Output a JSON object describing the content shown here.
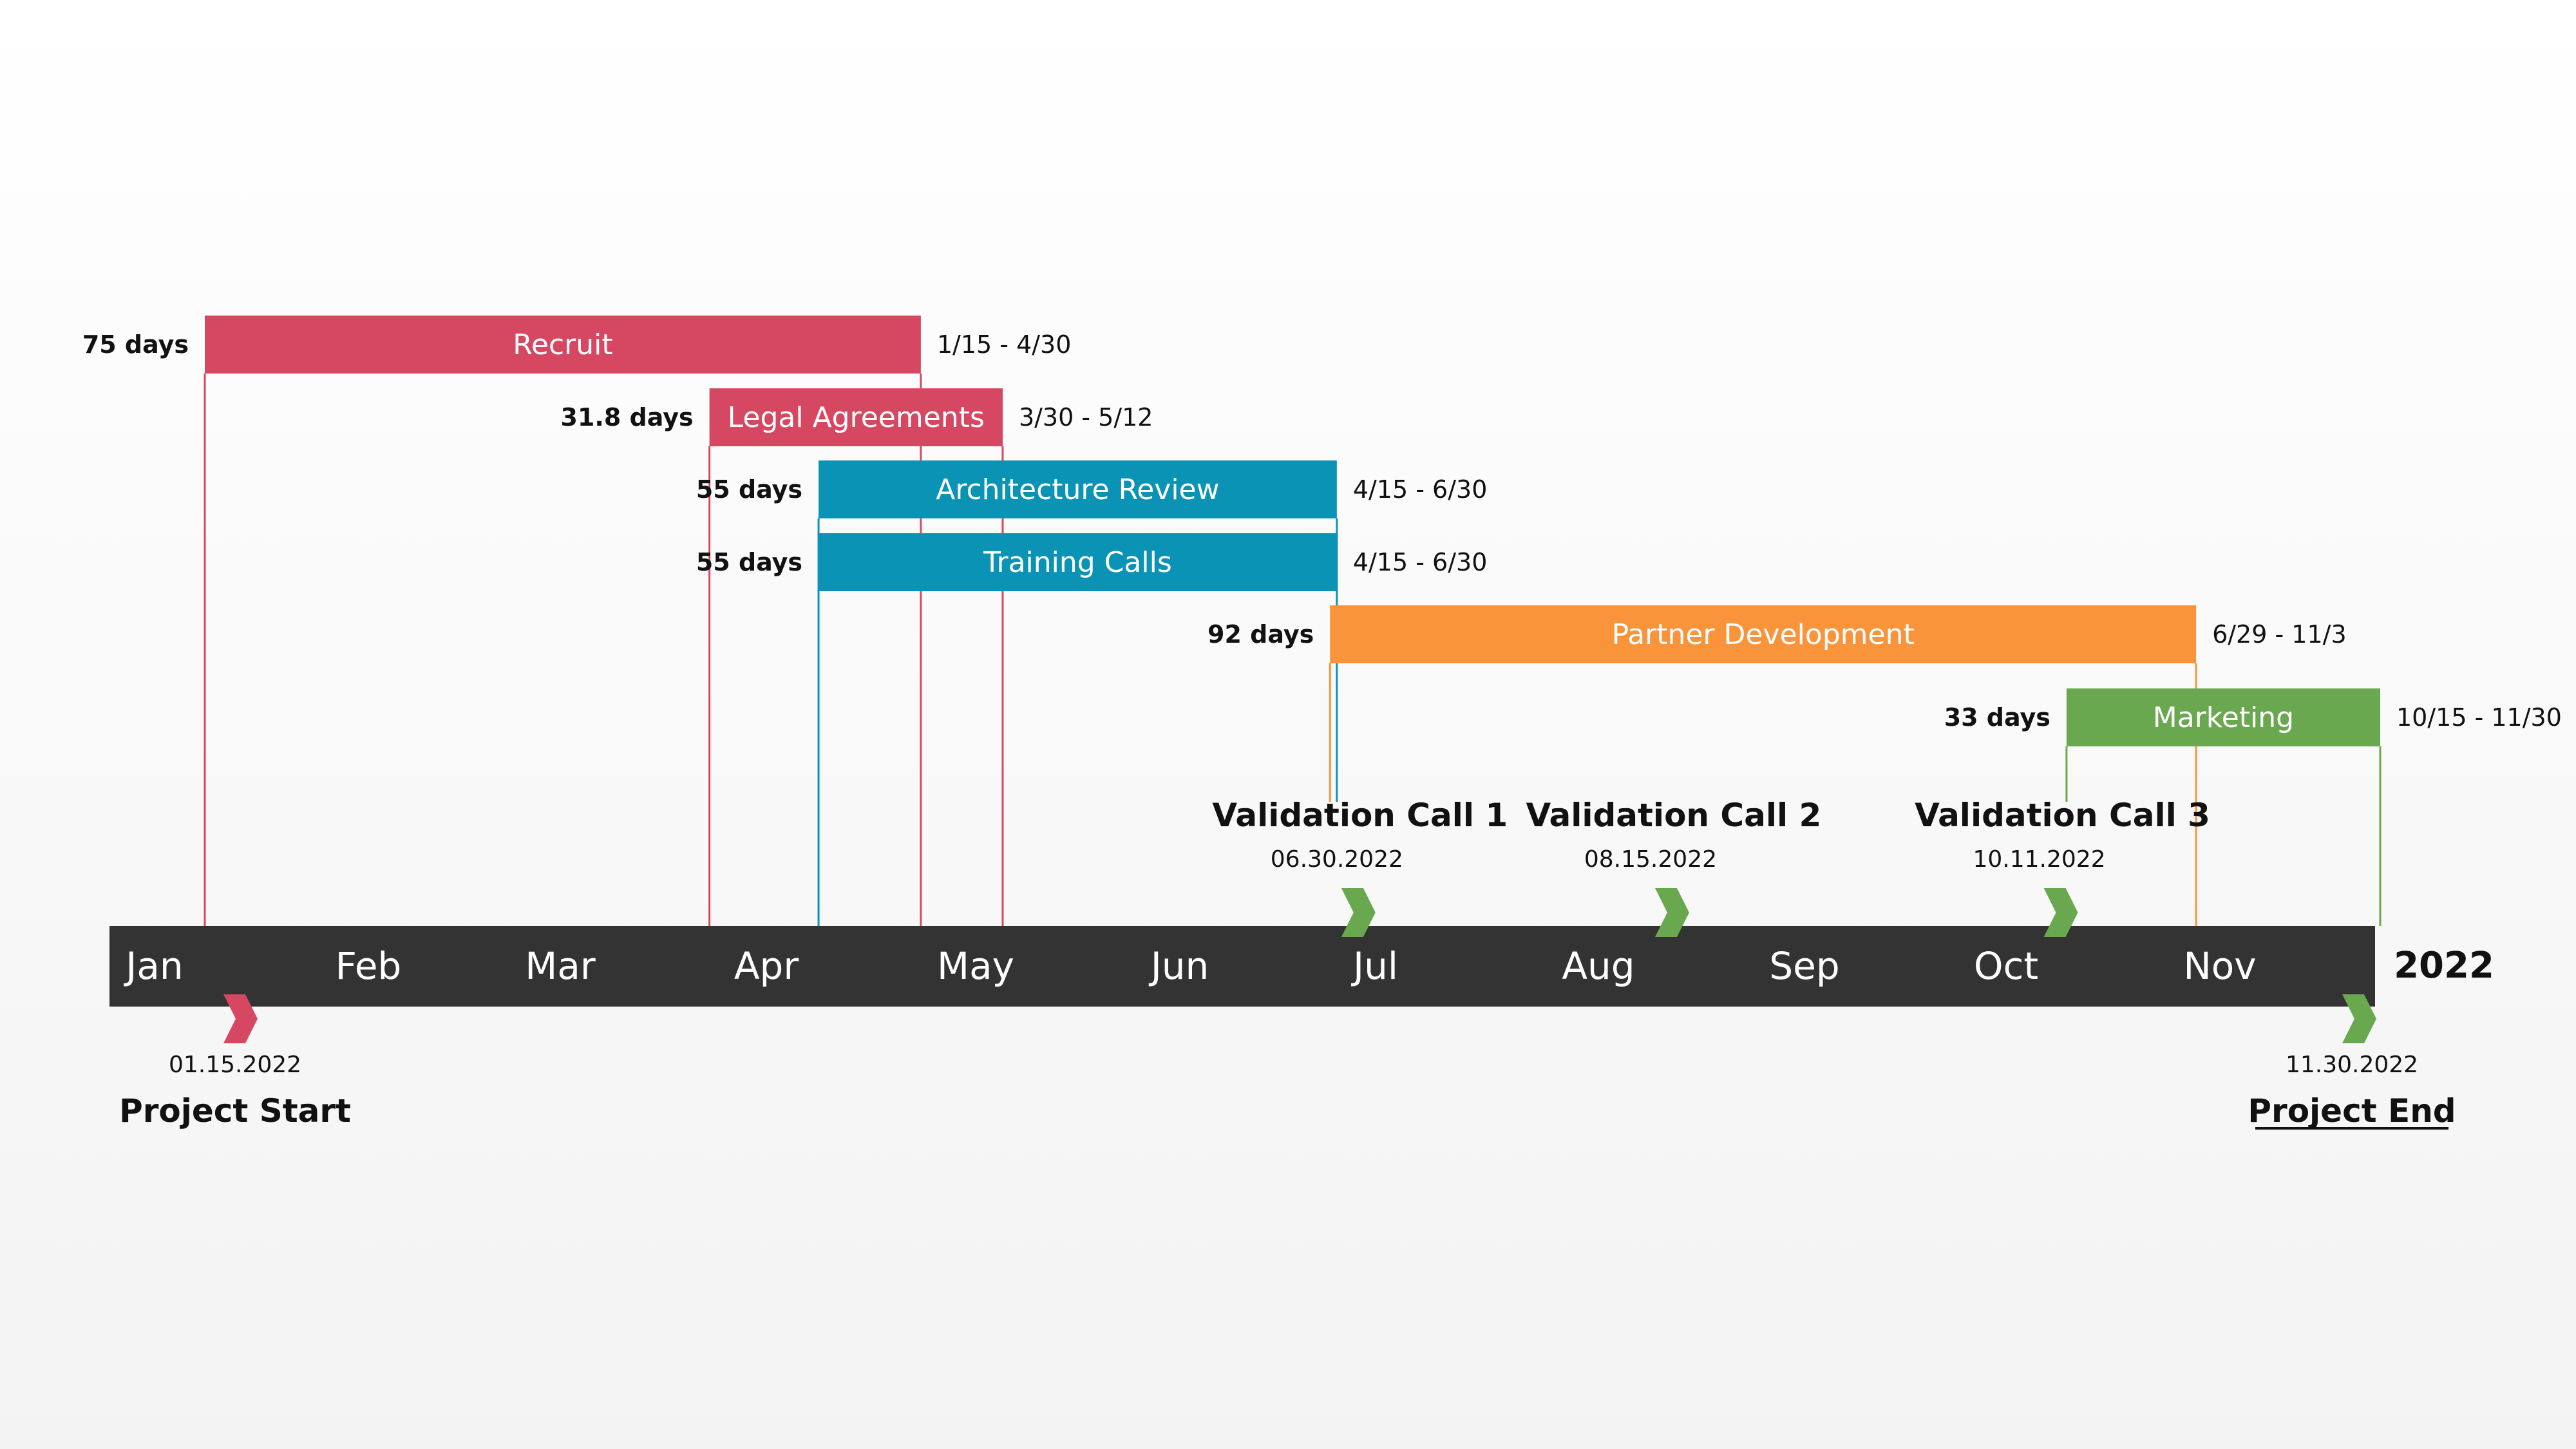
{
  "chart_data": {
    "type": "gantt",
    "year": "2022",
    "months": [
      "Jan",
      "Feb",
      "Mar",
      "Apr",
      "May",
      "Jun",
      "Jul",
      "Aug",
      "Sep",
      "Oct",
      "Nov"
    ],
    "colors": {
      "red": "#d64862",
      "blue": "#0a93b5",
      "orange": "#fa943b",
      "green": "#6aa84f",
      "axis": "#333333"
    },
    "tasks": [
      {
        "name": "Recruit",
        "start": "2022-01-15",
        "end": "2022-04-30",
        "duration_label": "75 days",
        "range_label": "1/15 - 4/30",
        "color": "#d64862"
      },
      {
        "name": "Legal Agreements",
        "start": "2022-03-30",
        "end": "2022-05-12",
        "duration_label": "31.8 days",
        "range_label": "3/30 - 5/12",
        "color": "#d64862"
      },
      {
        "name": "Architecture Review",
        "start": "2022-04-15",
        "end": "2022-06-30",
        "duration_label": "55 days",
        "range_label": "4/15 - 6/30",
        "color": "#0a93b5"
      },
      {
        "name": "Training Calls",
        "start": "2022-04-15",
        "end": "2022-06-30",
        "duration_label": "55 days",
        "range_label": "4/15 - 6/30",
        "color": "#0a93b5"
      },
      {
        "name": "Partner Development",
        "start": "2022-06-29",
        "end": "2022-11-03",
        "duration_label": "92 days",
        "range_label": "6/29 - 11/3",
        "color": "#fa943b"
      },
      {
        "name": "Marketing",
        "start": "2022-10-15",
        "end": "2022-11-30",
        "duration_label": "33 days",
        "range_label": "10/15 - 11/30",
        "color": "#6aa84f"
      }
    ],
    "milestones_above": [
      {
        "title": "Validation Call 1",
        "date_label": "06.30.2022",
        "date": "2022-06-30",
        "color": "#6aa84f"
      },
      {
        "title": "Validation Call 2",
        "date_label": "08.15.2022",
        "date": "2022-08-15",
        "color": "#6aa84f"
      },
      {
        "title": "Validation Call 3",
        "date_label": "10.11.2022",
        "date": "2022-10-11",
        "color": "#6aa84f"
      }
    ],
    "milestones_below": [
      {
        "title": "Project Start",
        "date_label": "01.15.2022",
        "date": "2022-01-15",
        "color": "#d64862",
        "underline": false
      },
      {
        "title": "Project End",
        "date_label": "11.30.2022",
        "date": "2022-11-30",
        "color": "#6aa84f",
        "underline": true
      }
    ]
  }
}
